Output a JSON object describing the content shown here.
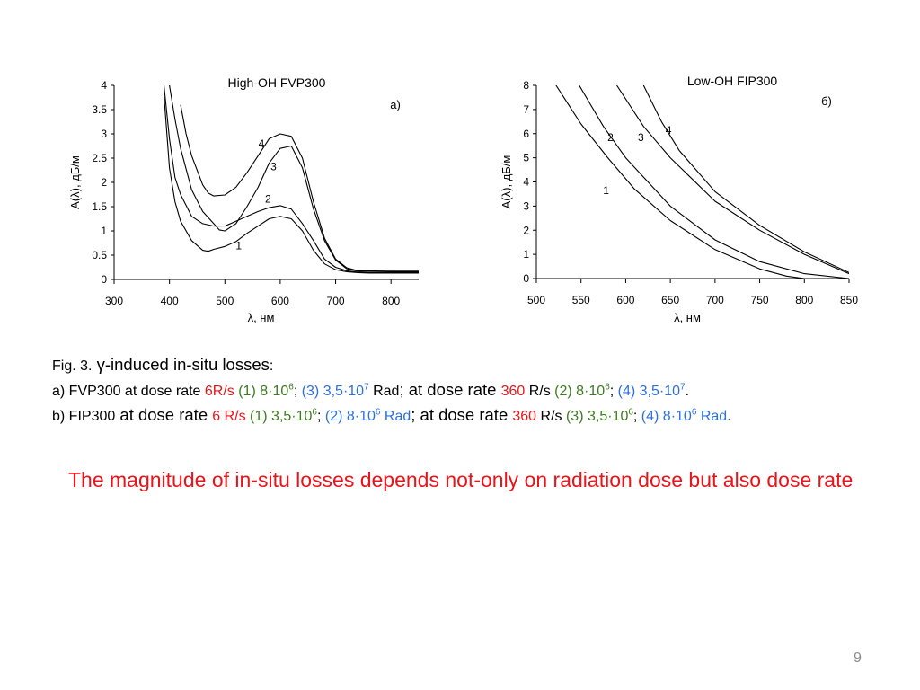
{
  "chart_data": [
    {
      "type": "line",
      "title": "High-OH FVP300",
      "panel_label": "a)",
      "xlabel": "λ, нм",
      "ylabel": "A(λ), дБ/м",
      "xlim": [
        300,
        850
      ],
      "ylim": [
        0,
        4
      ],
      "x_ticks": [
        "300",
        "400",
        "500",
        "600",
        "700",
        "800"
      ],
      "y_ticks": [
        "0",
        "0.5",
        "1",
        "1.5",
        "2",
        "2.5",
        "3",
        "3.5",
        "4"
      ],
      "grid": false,
      "series": [
        {
          "name": "1",
          "points": [
            [
              390,
              3.8
            ],
            [
              400,
              2.3
            ],
            [
              410,
              1.6
            ],
            [
              420,
              1.2
            ],
            [
              440,
              0.8
            ],
            [
              460,
              0.6
            ],
            [
              470,
              0.58
            ],
            [
              480,
              0.62
            ],
            [
              500,
              0.68
            ],
            [
              520,
              0.78
            ],
            [
              540,
              0.95
            ],
            [
              560,
              1.1
            ],
            [
              580,
              1.25
            ],
            [
              600,
              1.3
            ],
            [
              620,
              1.25
            ],
            [
              640,
              1.0
            ],
            [
              660,
              0.6
            ],
            [
              680,
              0.32
            ],
            [
              700,
              0.2
            ],
            [
              720,
              0.16
            ],
            [
              740,
              0.14
            ],
            [
              760,
              0.13
            ],
            [
              800,
              0.13
            ],
            [
              850,
              0.13
            ]
          ]
        },
        {
          "name": "2",
          "points": [
            [
              390,
              4.0
            ],
            [
              400,
              2.9
            ],
            [
              410,
              2.1
            ],
            [
              420,
              1.75
            ],
            [
              440,
              1.3
            ],
            [
              460,
              1.15
            ],
            [
              480,
              1.1
            ],
            [
              500,
              1.1
            ],
            [
              520,
              1.2
            ],
            [
              540,
              1.3
            ],
            [
              560,
              1.4
            ],
            [
              580,
              1.48
            ],
            [
              600,
              1.52
            ],
            [
              620,
              1.45
            ],
            [
              640,
              1.15
            ],
            [
              660,
              0.8
            ],
            [
              680,
              0.42
            ],
            [
              700,
              0.25
            ],
            [
              720,
              0.18
            ],
            [
              740,
              0.15
            ],
            [
              760,
              0.14
            ],
            [
              850,
              0.14
            ]
          ]
        },
        {
          "name": "3",
          "points": [
            [
              400,
              4.0
            ],
            [
              410,
              3.3
            ],
            [
              420,
              2.7
            ],
            [
              440,
              1.85
            ],
            [
              460,
              1.4
            ],
            [
              480,
              1.15
            ],
            [
              490,
              1.02
            ],
            [
              500,
              1.0
            ],
            [
              520,
              1.15
            ],
            [
              540,
              1.5
            ],
            [
              560,
              1.9
            ],
            [
              580,
              2.4
            ],
            [
              600,
              2.7
            ],
            [
              620,
              2.75
            ],
            [
              640,
              2.3
            ],
            [
              660,
              1.45
            ],
            [
              680,
              0.8
            ],
            [
              700,
              0.4
            ],
            [
              720,
              0.22
            ],
            [
              740,
              0.17
            ],
            [
              800,
              0.16
            ],
            [
              850,
              0.16
            ]
          ]
        },
        {
          "name": "4",
          "points": [
            [
              420,
              3.6
            ],
            [
              430,
              3.0
            ],
            [
              440,
              2.55
            ],
            [
              460,
              1.95
            ],
            [
              470,
              1.78
            ],
            [
              480,
              1.72
            ],
            [
              500,
              1.74
            ],
            [
              520,
              1.9
            ],
            [
              540,
              2.2
            ],
            [
              560,
              2.55
            ],
            [
              580,
              2.9
            ],
            [
              600,
              3.0
            ],
            [
              620,
              2.95
            ],
            [
              640,
              2.5
            ],
            [
              660,
              1.6
            ],
            [
              680,
              0.85
            ],
            [
              700,
              0.42
            ],
            [
              720,
              0.24
            ],
            [
              740,
              0.18
            ],
            [
              800,
              0.17
            ],
            [
              850,
              0.17
            ]
          ]
        }
      ],
      "curve_labels": [
        {
          "text": "1",
          "x": 525,
          "y": 0.62
        },
        {
          "text": "2",
          "x": 578,
          "y": 1.58
        },
        {
          "text": "3",
          "x": 588,
          "y": 2.25
        },
        {
          "text": "4",
          "x": 566,
          "y": 2.72
        }
      ]
    },
    {
      "type": "line",
      "title": "Low-OH FIP300",
      "panel_label": "б)",
      "xlabel": "λ, нм",
      "ylabel": "A(λ), дБ/м",
      "xlim": [
        500,
        850
      ],
      "ylim": [
        0,
        8
      ],
      "x_ticks": [
        "500",
        "550",
        "600",
        "650",
        "700",
        "750",
        "800",
        "850"
      ],
      "y_ticks": [
        "0",
        "1",
        "2",
        "3",
        "4",
        "5",
        "6",
        "7",
        "8"
      ],
      "grid": false,
      "series": [
        {
          "name": "1",
          "points": [
            [
              522,
              8.0
            ],
            [
              550,
              6.4
            ],
            [
              580,
              5.0
            ],
            [
              610,
              3.7
            ],
            [
              650,
              2.4
            ],
            [
              700,
              1.2
            ],
            [
              750,
              0.4
            ],
            [
              780,
              0.1
            ],
            [
              800,
              0.0
            ]
          ]
        },
        {
          "name": "2",
          "points": [
            [
              548,
              8.0
            ],
            [
              575,
              6.3
            ],
            [
              600,
              5.0
            ],
            [
              650,
              3.0
            ],
            [
              700,
              1.6
            ],
            [
              750,
              0.7
            ],
            [
              800,
              0.2
            ],
            [
              850,
              0.0
            ]
          ]
        },
        {
          "name": "3",
          "points": [
            [
              590,
              8.0
            ],
            [
              620,
              6.3
            ],
            [
              650,
              5.0
            ],
            [
              700,
              3.2
            ],
            [
              750,
              2.0
            ],
            [
              800,
              1.0
            ],
            [
              850,
              0.2
            ]
          ]
        },
        {
          "name": "4",
          "points": [
            [
              620,
              8.0
            ],
            [
              640,
              6.5
            ],
            [
              660,
              5.3
            ],
            [
              700,
              3.6
            ],
            [
              750,
              2.2
            ],
            [
              800,
              1.1
            ],
            [
              850,
              0.25
            ]
          ]
        }
      ],
      "curve_labels": [
        {
          "text": "1",
          "x": 578,
          "y": 3.5
        },
        {
          "text": "2",
          "x": 583,
          "y": 5.7
        },
        {
          "text": "3",
          "x": 617,
          "y": 5.7
        },
        {
          "text": "4",
          "x": 648,
          "y": 6.0
        }
      ]
    }
  ],
  "caption": {
    "line1": {
      "fig": "Fig. 3.",
      "text": " γ-induced in-situ losses",
      "colon": ":"
    },
    "line2": [
      {
        "text": "a) FVP300 at dose rate ",
        "color": "black",
        "big": false,
        "sup": false
      },
      {
        "text": "6R/s",
        "color": "red",
        "big": false,
        "sup": false
      },
      {
        "text": " (1) 8·10",
        "color": "green",
        "big": false,
        "sup": false
      },
      {
        "text": "6",
        "color": "green",
        "big": false,
        "sup": true
      },
      {
        "text": "; ",
        "color": "black",
        "big": false,
        "sup": false
      },
      {
        "text": "(3) 3,5·10",
        "color": "blue",
        "big": false,
        "sup": false
      },
      {
        "text": "7",
        "color": "blue",
        "big": false,
        "sup": true
      },
      {
        "text": " Rad",
        "color": "black",
        "big": false,
        "sup": false
      },
      {
        "text": "; at dose rate ",
        "color": "black",
        "big": true,
        "sup": false
      },
      {
        "text": "360",
        "color": "red",
        "big": false,
        "sup": false
      },
      {
        "text": " R/s ",
        "color": "black",
        "big": false,
        "sup": false
      },
      {
        "text": "(2) 8·10",
        "color": "green",
        "big": false,
        "sup": false
      },
      {
        "text": "6",
        "color": "green",
        "big": false,
        "sup": true
      },
      {
        "text": "; ",
        "color": "black",
        "big": false,
        "sup": false
      },
      {
        "text": "(4) 3,5·10",
        "color": "blue",
        "big": false,
        "sup": false
      },
      {
        "text": "7",
        "color": "blue",
        "big": false,
        "sup": true
      },
      {
        "text": ".",
        "color": "black",
        "big": false,
        "sup": false
      }
    ],
    "line3": [
      {
        "text": "b) FIP300",
        "color": "black",
        "big": false,
        "sup": false
      },
      {
        "text": " at dose rate ",
        "color": "black",
        "big": true,
        "sup": false
      },
      {
        "text": "6 R/s",
        "color": "red",
        "big": false,
        "sup": false
      },
      {
        "text": " (1) 3,5·10",
        "color": "green",
        "big": false,
        "sup": false
      },
      {
        "text": "6",
        "color": "green",
        "big": false,
        "sup": true
      },
      {
        "text": "; ",
        "color": "black",
        "big": false,
        "sup": false
      },
      {
        "text": "(2) 8·10",
        "color": "blue",
        "big": false,
        "sup": false
      },
      {
        "text": "6",
        "color": "blue",
        "big": false,
        "sup": true
      },
      {
        "text": " Rad",
        "color": "blue",
        "big": false,
        "sup": false
      },
      {
        "text": "; at dose rate ",
        "color": "black",
        "big": true,
        "sup": false
      },
      {
        "text": "360",
        "color": "red",
        "big": false,
        "sup": false
      },
      {
        "text": " R/s ",
        "color": "black",
        "big": false,
        "sup": false
      },
      {
        "text": "(3) 3,5·10",
        "color": "green",
        "big": false,
        "sup": false
      },
      {
        "text": "6",
        "color": "green",
        "big": false,
        "sup": true
      },
      {
        "text": "; ",
        "color": "black",
        "big": false,
        "sup": false
      },
      {
        "text": "(4) 8·10",
        "color": "blue",
        "big": false,
        "sup": false
      },
      {
        "text": "6",
        "color": "blue",
        "big": false,
        "sup": true
      },
      {
        "text": " Rad",
        "color": "blue",
        "big": false,
        "sup": false
      },
      {
        "text": ".",
        "color": "black",
        "big": false,
        "sup": false
      }
    ]
  },
  "statement": "The magnitude of in-situ losses depends not-only on radiation dose but also dose rate",
  "page_number": "9",
  "colors": {
    "red": "#e8141c",
    "green": "#3f7a24",
    "blue": "#2e6fe0",
    "page_number": "#8a8a8a"
  }
}
